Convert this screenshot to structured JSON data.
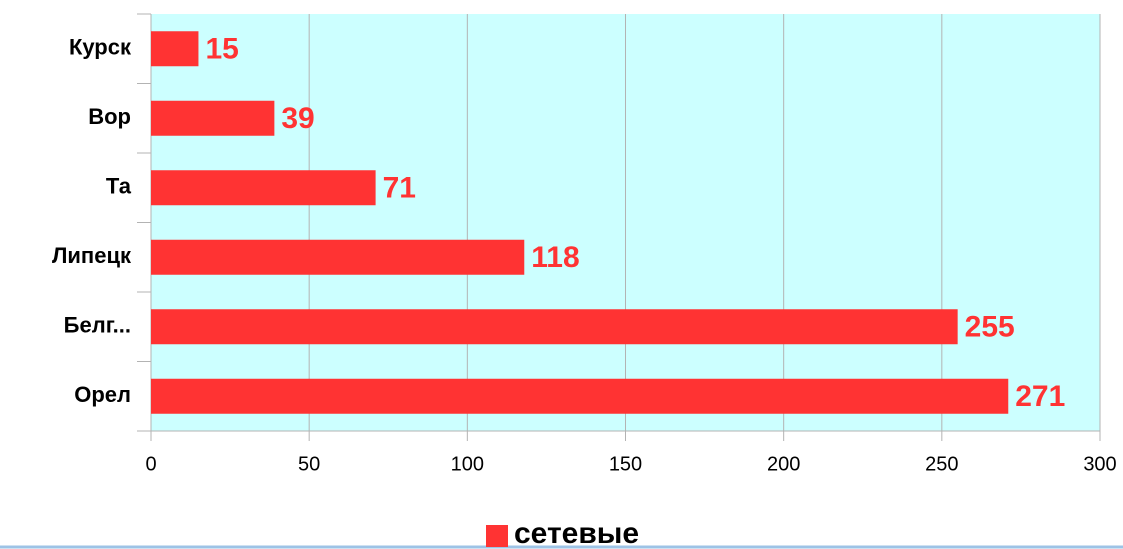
{
  "chart_data": {
    "type": "bar",
    "orientation": "horizontal",
    "categories": [
      "Курск",
      "Вор",
      "Та",
      "Липецк",
      "Белг...",
      "Орел"
    ],
    "series": [
      {
        "name": "сетевые",
        "color": "#ff3333",
        "values": [
          15,
          39,
          71,
          118,
          255,
          271
        ]
      }
    ],
    "xlim": [
      0,
      300
    ],
    "xticks": [
      0,
      50,
      100,
      150,
      200,
      250,
      300
    ],
    "grid": true,
    "plot_background": "#ccffff",
    "legend": "bottom"
  }
}
